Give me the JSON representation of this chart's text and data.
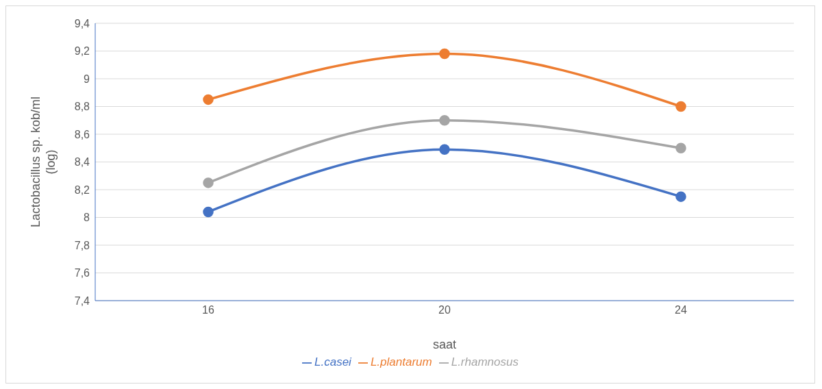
{
  "chart_data": {
    "type": "line",
    "xlabel": "saat",
    "ylabel": "Lactobacillus sp. kob/ml (log)",
    "categories": [
      "16",
      "20",
      "24"
    ],
    "series": [
      {
        "name": "L.casei",
        "color": "#4472c4",
        "values": [
          8.04,
          8.49,
          8.15
        ]
      },
      {
        "name": "L.plantarum",
        "color": "#ed7d31",
        "values": [
          8.85,
          9.18,
          8.8
        ]
      },
      {
        "name": "L.rhamnosus",
        "color": "#a5a5a5",
        "values": [
          8.25,
          8.7,
          8.5
        ]
      }
    ],
    "ylim": [
      7.4,
      9.4
    ],
    "yticks": [
      {
        "value": 7.4,
        "label": "7,4"
      },
      {
        "value": 7.6,
        "label": "7,6"
      },
      {
        "value": 7.8,
        "label": "7,8"
      },
      8,
      {
        "value": 8.2,
        "label": "8,2"
      },
      {
        "value": 8.4,
        "label": "8,4"
      },
      {
        "value": 8.6,
        "label": "8,6"
      },
      {
        "value": 8.8,
        "label": "8,8"
      },
      9,
      {
        "value": 9.2,
        "label": "9,2"
      },
      {
        "value": 9.4,
        "label": "9,4"
      }
    ],
    "grid": "y",
    "legend": "bottom",
    "marker": "circle",
    "line_style": "solid"
  }
}
